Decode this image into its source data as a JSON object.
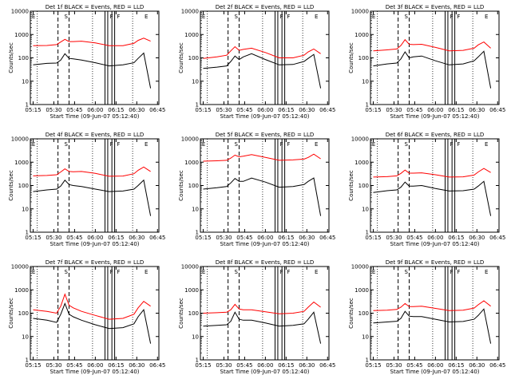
{
  "chart_data": [
    {
      "type": "line",
      "title": "Det 1f BLACK = Events, RED = LLD",
      "xlabel": "Start Time (09-Jun-07 05:12:40)",
      "ylabel": "Counts/sec",
      "x_ticks": [
        "05:15",
        "05:30",
        "05:45",
        "06:00",
        "06:15",
        "06:30",
        "06:45"
      ],
      "y_ticks": [
        "1",
        "10",
        "100",
        "1000",
        "10000"
      ],
      "ylim": [
        1,
        10000
      ],
      "log_y": true,
      "markers": [
        "E",
        "S",
        "F",
        "F",
        "E"
      ],
      "series": [
        {
          "color": "#000000",
          "x": [
            0,
            10,
            17,
            20,
            23,
            26,
            29,
            35,
            45,
            55,
            65,
            73,
            76,
            80,
            85
          ],
          "values": [
            50,
            58,
            60,
            80,
            150,
            95,
            90,
            80,
            62,
            45,
            50,
            62,
            95,
            160,
            5
          ]
        },
        {
          "color": "#ff0000",
          "x": [
            0,
            10,
            17,
            20,
            23,
            26,
            29,
            35,
            45,
            55,
            65,
            73,
            76,
            80,
            85
          ],
          "values": [
            330,
            340,
            370,
            480,
            620,
            500,
            500,
            520,
            440,
            330,
            330,
            420,
            560,
            700,
            520
          ]
        }
      ]
    },
    {
      "type": "line",
      "title": "Det 2f BLACK = Events, RED = LLD",
      "xlabel": "Start Time (09-Jun-07 05:12:40)",
      "ylabel": "Counts/sec",
      "x_ticks": [
        "05:15",
        "05:30",
        "05:45",
        "06:00",
        "06:15",
        "06:30",
        "06:45"
      ],
      "y_ticks": [
        "1",
        "10",
        "100",
        "1000",
        "10000"
      ],
      "ylim": [
        1,
        10000
      ],
      "log_y": true,
      "markers": [
        "E",
        "S",
        "F",
        "F",
        "E"
      ],
      "series": [
        {
          "color": "#000000",
          "x": [
            0,
            10,
            17,
            20,
            23,
            26,
            29,
            35,
            45,
            55,
            65,
            73,
            76,
            80,
            85
          ],
          "values": [
            35,
            40,
            45,
            70,
            120,
            85,
            110,
            150,
            85,
            50,
            52,
            70,
            95,
            140,
            5
          ]
        },
        {
          "color": "#ff0000",
          "x": [
            0,
            10,
            17,
            20,
            23,
            26,
            29,
            35,
            45,
            55,
            65,
            73,
            76,
            80,
            85
          ],
          "values": [
            95,
            110,
            130,
            200,
            300,
            210,
            230,
            260,
            170,
            100,
            100,
            130,
            180,
            240,
            150
          ]
        }
      ]
    },
    {
      "type": "line",
      "title": "Det 3f BLACK = Events, RED = LLD",
      "xlabel": "Start Time (09-Jun-07 05:12:40)",
      "ylabel": "Counts/sec",
      "x_ticks": [
        "05:15",
        "05:30",
        "05:45",
        "06:00",
        "06:15",
        "06:30",
        "06:45"
      ],
      "y_ticks": [
        "1",
        "10",
        "100",
        "1000",
        "10000"
      ],
      "ylim": [
        1,
        10000
      ],
      "log_y": true,
      "markers": [
        "E",
        "S",
        "F",
        "F",
        "E"
      ],
      "series": [
        {
          "color": "#000000",
          "x": [
            0,
            10,
            17,
            20,
            23,
            26,
            29,
            35,
            45,
            55,
            65,
            73,
            76,
            80,
            85
          ],
          "values": [
            45,
            55,
            60,
            90,
            180,
            100,
            110,
            120,
            75,
            50,
            55,
            75,
            110,
            190,
            5
          ]
        },
        {
          "color": "#ff0000",
          "x": [
            0,
            10,
            17,
            20,
            23,
            26,
            29,
            35,
            45,
            55,
            65,
            73,
            76,
            80,
            85
          ],
          "values": [
            200,
            220,
            240,
            340,
            600,
            380,
            370,
            380,
            280,
            200,
            210,
            260,
            360,
            480,
            260
          ]
        }
      ]
    },
    {
      "type": "line",
      "title": "Det 4f BLACK = Events, RED = LLD",
      "xlabel": "Start Time (09-Jun-07 05:12:40)",
      "ylabel": "Counts/sec",
      "x_ticks": [
        "05:15",
        "05:30",
        "05:45",
        "06:00",
        "06:15",
        "06:30",
        "06:45"
      ],
      "y_ticks": [
        "1",
        "10",
        "100",
        "1000",
        "10000"
      ],
      "ylim": [
        1,
        10000
      ],
      "log_y": true,
      "markers": [
        "E",
        "S",
        "F",
        "F",
        "E"
      ],
      "series": [
        {
          "color": "#000000",
          "x": [
            0,
            10,
            17,
            20,
            23,
            26,
            29,
            35,
            45,
            55,
            65,
            73,
            76,
            80,
            85
          ],
          "values": [
            55,
            65,
            70,
            95,
            170,
            110,
            100,
            90,
            70,
            55,
            58,
            70,
            100,
            170,
            5
          ]
        },
        {
          "color": "#ff0000",
          "x": [
            0,
            10,
            17,
            20,
            23,
            26,
            29,
            35,
            45,
            55,
            65,
            73,
            76,
            80,
            85
          ],
          "values": [
            260,
            270,
            290,
            380,
            520,
            400,
            390,
            400,
            330,
            250,
            255,
            320,
            450,
            620,
            400
          ]
        }
      ]
    },
    {
      "type": "line",
      "title": "Det 5f BLACK = Events, RED = LLD",
      "xlabel": "Start Time (09-Jun-07 05:12:40)",
      "ylabel": "Counts/sec",
      "x_ticks": [
        "05:15",
        "05:30",
        "05:45",
        "06:00",
        "06:15",
        "06:30",
        "06:45"
      ],
      "y_ticks": [
        "1",
        "10",
        "100",
        "1000",
        "10000"
      ],
      "ylim": [
        1,
        10000
      ],
      "log_y": true,
      "markers": [
        "E",
        "S",
        "F",
        "F",
        "E"
      ],
      "series": [
        {
          "color": "#000000",
          "x": [
            0,
            10,
            17,
            20,
            23,
            26,
            29,
            35,
            45,
            55,
            65,
            73,
            76,
            80,
            85
          ],
          "values": [
            70,
            80,
            90,
            130,
            200,
            150,
            150,
            210,
            140,
            85,
            90,
            110,
            150,
            210,
            5
          ]
        },
        {
          "color": "#ff0000",
          "x": [
            0,
            10,
            17,
            20,
            23,
            26,
            29,
            35,
            45,
            55,
            65,
            73,
            76,
            80,
            85
          ],
          "values": [
            1100,
            1150,
            1200,
            1500,
            2000,
            1700,
            1800,
            2100,
            1600,
            1200,
            1250,
            1350,
            1600,
            2200,
            1400
          ]
        }
      ]
    },
    {
      "type": "line",
      "title": "Det 6f BLACK = Events, RED = LLD",
      "xlabel": "Start Time (09-Jun-07 05:12:40)",
      "ylabel": "Counts/sec",
      "x_ticks": [
        "05:15",
        "05:30",
        "05:45",
        "06:00",
        "06:15",
        "06:30",
        "06:45"
      ],
      "y_ticks": [
        "1",
        "10",
        "100",
        "1000",
        "10000"
      ],
      "ylim": [
        1,
        10000
      ],
      "log_y": true,
      "markers": [
        "E",
        "S",
        "F",
        "F",
        "E"
      ],
      "series": [
        {
          "color": "#000000",
          "x": [
            0,
            10,
            17,
            20,
            23,
            26,
            29,
            35,
            45,
            55,
            65,
            73,
            76,
            80,
            85
          ],
          "values": [
            50,
            60,
            65,
            85,
            140,
            95,
            95,
            100,
            75,
            58,
            60,
            70,
            95,
            150,
            5
          ]
        },
        {
          "color": "#ff0000",
          "x": [
            0,
            10,
            17,
            20,
            23,
            26,
            29,
            35,
            45,
            55,
            65,
            73,
            76,
            80,
            85
          ],
          "values": [
            230,
            240,
            260,
            330,
            460,
            340,
            340,
            350,
            290,
            230,
            235,
            280,
            380,
            540,
            360
          ]
        }
      ]
    },
    {
      "type": "line",
      "title": "Det 7f BLACK = Events, RED = LLD",
      "xlabel": "Start Time (09-Jun-07 05:12:40)",
      "ylabel": "Counts/sec",
      "x_ticks": [
        "05:15",
        "05:30",
        "05:45",
        "06:00",
        "06:15",
        "06:30",
        "06:45"
      ],
      "y_ticks": [
        "1",
        "10",
        "100",
        "1000",
        "10000"
      ],
      "ylim": [
        1,
        10000
      ],
      "log_y": true,
      "markers": [
        "E",
        "S",
        "F",
        "F",
        "E"
      ],
      "series": [
        {
          "color": "#000000",
          "x": [
            0,
            10,
            17,
            20,
            23,
            26,
            29,
            35,
            45,
            55,
            65,
            73,
            76,
            80,
            85
          ],
          "values": [
            60,
            50,
            40,
            90,
            260,
            90,
            70,
            50,
            32,
            22,
            24,
            35,
            70,
            140,
            5
          ]
        },
        {
          "color": "#ff0000",
          "x": [
            0,
            10,
            17,
            20,
            23,
            26,
            29,
            35,
            45,
            55,
            65,
            73,
            76,
            80,
            85
          ],
          "values": [
            140,
            120,
            100,
            200,
            650,
            220,
            170,
            120,
            80,
            55,
            60,
            90,
            170,
            320,
            200
          ]
        }
      ]
    },
    {
      "type": "line",
      "title": "Det 8f BLACK = Events, RED = LLD",
      "xlabel": "Start Time (09-Jun-07 05:12:40)",
      "ylabel": "Counts/sec",
      "x_ticks": [
        "05:15",
        "05:30",
        "05:45",
        "06:00",
        "06:15",
        "06:30",
        "06:45"
      ],
      "y_ticks": [
        "1",
        "10",
        "100",
        "1000",
        "10000"
      ],
      "ylim": [
        1,
        10000
      ],
      "log_y": true,
      "markers": [
        "E",
        "S",
        "F",
        "F",
        "E"
      ],
      "series": [
        {
          "color": "#000000",
          "x": [
            0,
            10,
            17,
            20,
            23,
            26,
            29,
            35,
            45,
            55,
            65,
            73,
            76,
            80,
            85
          ],
          "values": [
            28,
            30,
            32,
            45,
            110,
            55,
            50,
            50,
            38,
            28,
            30,
            35,
            55,
            110,
            5
          ]
        },
        {
          "color": "#ff0000",
          "x": [
            0,
            10,
            17,
            20,
            23,
            26,
            29,
            35,
            45,
            55,
            65,
            73,
            76,
            80,
            85
          ],
          "values": [
            100,
            105,
            110,
            140,
            240,
            150,
            140,
            140,
            115,
            95,
            100,
            120,
            180,
            300,
            180
          ]
        }
      ]
    },
    {
      "type": "line",
      "title": "Det 9f BLACK = Events, RED = LLD",
      "xlabel": "Start Time (09-Jun-07 05:12:40)",
      "ylabel": "Counts/sec",
      "x_ticks": [
        "05:15",
        "05:30",
        "05:45",
        "06:00",
        "06:15",
        "06:30",
        "06:45"
      ],
      "y_ticks": [
        "1",
        "10",
        "100",
        "1000",
        "10000"
      ],
      "ylim": [
        1,
        10000
      ],
      "log_y": true,
      "markers": [
        "E",
        "S",
        "F",
        "F",
        "E"
      ],
      "series": [
        {
          "color": "#000000",
          "x": [
            0,
            10,
            17,
            20,
            23,
            26,
            29,
            35,
            45,
            55,
            65,
            73,
            76,
            80,
            85
          ],
          "values": [
            38,
            42,
            45,
            60,
            120,
            75,
            72,
            72,
            55,
            42,
            44,
            55,
            80,
            150,
            5
          ]
        },
        {
          "color": "#ff0000",
          "x": [
            0,
            10,
            17,
            20,
            23,
            26,
            29,
            35,
            45,
            55,
            65,
            73,
            76,
            80,
            85
          ],
          "values": [
            130,
            135,
            145,
            180,
            260,
            190,
            190,
            200,
            160,
            130,
            135,
            165,
            230,
            340,
            200
          ]
        }
      ]
    }
  ]
}
